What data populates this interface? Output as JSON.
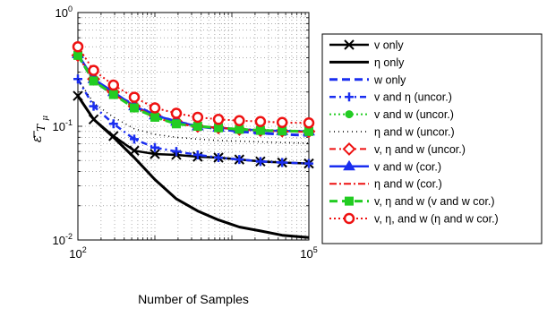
{
  "chart_data": {
    "type": "line",
    "xscale": "log",
    "yscale": "log",
    "xlim": [
      100,
      100000
    ],
    "ylim": [
      0.01,
      1
    ],
    "xlabel": "Number of Samples",
    "ylabel_symbol": "ε",
    "ylabel_subscript_T": "T",
    "ylabel_subscript_mu": "μ",
    "grid": true,
    "legend_position": "right",
    "xticks": [
      {
        "value": 100,
        "base": "10",
        "exp": "2"
      },
      {
        "value": 100000,
        "base": "10",
        "exp": "5"
      }
    ],
    "yticks": [
      {
        "value": 0.01,
        "base": "10",
        "exp": "-2"
      },
      {
        "value": 0.1,
        "base": "10",
        "exp": "-1"
      },
      {
        "value": 1,
        "base": "10",
        "exp": "0"
      }
    ],
    "x": [
      100,
      160,
      290,
      540,
      1000,
      1900,
      3600,
      6700,
      12500,
      23500,
      45000,
      100000
    ],
    "series": [
      {
        "name": "v only",
        "color": "#000000",
        "dash": "",
        "width": 2.5,
        "marker": "x",
        "values": [
          0.185,
          0.115,
          0.082,
          0.061,
          0.057,
          0.056,
          0.054,
          0.053,
          0.051,
          0.049,
          0.048,
          0.047
        ]
      },
      {
        "name": "η only",
        "color": "#000000",
        "dash": "",
        "width": 3,
        "marker": "none",
        "values": [
          0.185,
          0.115,
          0.08,
          0.053,
          0.034,
          0.023,
          0.018,
          0.015,
          0.013,
          0.012,
          0.011,
          0.0105
        ]
      },
      {
        "name": "w only",
        "color": "#1a2ef0",
        "dash": "9 5",
        "width": 3,
        "marker": "none",
        "values": [
          0.42,
          0.25,
          0.19,
          0.155,
          0.125,
          0.11,
          0.1,
          0.095,
          0.09,
          0.087,
          0.085,
          0.083
        ]
      },
      {
        "name": "v and η (uncor.)",
        "color": "#1a2ef0",
        "dash": "7 4 2 4",
        "width": 2.5,
        "marker": "plus",
        "values": [
          0.26,
          0.15,
          0.105,
          0.077,
          0.065,
          0.06,
          0.056,
          0.053,
          0.051,
          0.049,
          0.048,
          0.047
        ]
      },
      {
        "name": "v and w (uncor.)",
        "color": "#22cc22",
        "dash": "2 3",
        "width": 2,
        "marker": "circle",
        "values": [
          0.42,
          0.25,
          0.19,
          0.145,
          0.12,
          0.105,
          0.1,
          0.097,
          0.095,
          0.093,
          0.092,
          0.091
        ]
      },
      {
        "name": "η and w (uncor.)",
        "color": "#000000",
        "dash": "1 4",
        "width": 1.5,
        "marker": "none",
        "values": [
          0.26,
          0.16,
          0.12,
          0.095,
          0.085,
          0.08,
          0.077,
          0.075,
          0.074,
          0.073,
          0.072,
          0.071
        ]
      },
      {
        "name": "v, η and w (uncor.)",
        "color": "#ee1111",
        "dash": "7 4 2 4",
        "width": 2,
        "marker": "diamond",
        "values": [
          0.42,
          0.26,
          0.2,
          0.15,
          0.125,
          0.11,
          0.1,
          0.097,
          0.094,
          0.092,
          0.091,
          0.09
        ]
      },
      {
        "name": "v and w (cor.)",
        "color": "#1a2ef0",
        "dash": "",
        "width": 2.5,
        "marker": "triangle",
        "values": [
          0.43,
          0.26,
          0.2,
          0.15,
          0.125,
          0.11,
          0.1,
          0.097,
          0.094,
          0.092,
          0.091,
          0.09
        ]
      },
      {
        "name": "η and w (cor.)",
        "color": "#ee1111",
        "dash": "8 3 2 3",
        "width": 2,
        "marker": "none",
        "values": [
          0.42,
          0.25,
          0.19,
          0.15,
          0.12,
          0.105,
          0.1,
          0.097,
          0.094,
          0.091,
          0.09,
          0.089
        ]
      },
      {
        "name": "v, η and w (v and w cor.)",
        "color": "#22cc22",
        "dash": "9 5",
        "width": 3,
        "marker": "square",
        "values": [
          0.42,
          0.25,
          0.19,
          0.145,
          0.12,
          0.105,
          0.1,
          0.097,
          0.094,
          0.092,
          0.091,
          0.09
        ]
      },
      {
        "name": "v, η, and w (η and w cor.)",
        "color": "#ee1111",
        "dash": "2 3",
        "width": 2,
        "marker": "ring",
        "values": [
          0.5,
          0.31,
          0.23,
          0.18,
          0.145,
          0.13,
          0.12,
          0.115,
          0.112,
          0.11,
          0.108,
          0.107
        ]
      }
    ]
  }
}
